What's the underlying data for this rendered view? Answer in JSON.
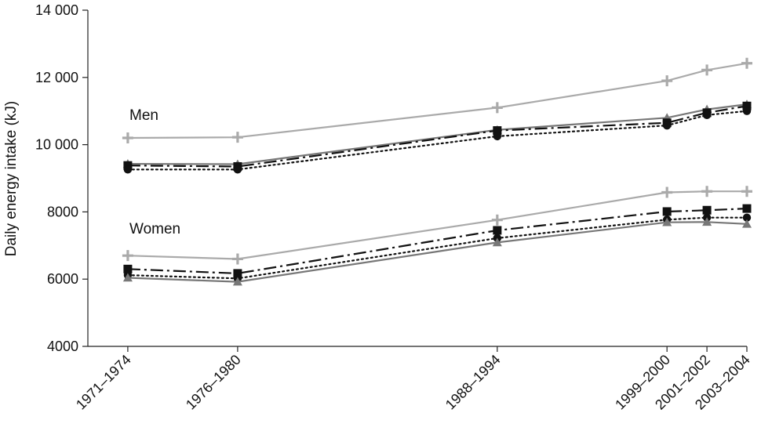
{
  "chart_data": {
    "type": "line",
    "ylabel": "Daily energy intake (kJ)",
    "xlabel": "",
    "ylim": [
      4000,
      14000
    ],
    "yticks": [
      4000,
      6000,
      8000,
      10000,
      12000,
      14000
    ],
    "ytick_labels": [
      "4000",
      "6000",
      "8000",
      "10 000",
      "12 000",
      "14 000"
    ],
    "x": [
      1972.5,
      1978,
      1991,
      1999.5,
      2001.5,
      2003.5
    ],
    "categories": [
      "1971–1974",
      "1976–1980",
      "1988–1994",
      "1999–2000",
      "2001–2002",
      "2003–2004"
    ],
    "grid": false,
    "annotations": [
      "Men",
      "Women"
    ],
    "series": [
      {
        "group": "Men",
        "style": "solid-light-gray-plus",
        "color": "#aaaaaa",
        "marker": "plus",
        "values": [
          10200,
          10220,
          11100,
          11900,
          12220,
          12420
        ]
      },
      {
        "group": "Men",
        "style": "solid-gray-triangle",
        "color": "#777777",
        "marker": "triangle",
        "values": [
          9430,
          9420,
          10440,
          10800,
          11050,
          11200
        ]
      },
      {
        "group": "Men",
        "style": "dashdot-black-square",
        "color": "#111111",
        "marker": "square",
        "values": [
          9380,
          9350,
          10420,
          10650,
          10950,
          11150
        ]
      },
      {
        "group": "Men",
        "style": "dotted-black-circle",
        "color": "#111111",
        "marker": "circle",
        "values": [
          9260,
          9260,
          10250,
          10570,
          10880,
          11000
        ]
      },
      {
        "group": "Women",
        "style": "solid-light-gray-plus",
        "color": "#aaaaaa",
        "marker": "plus",
        "values": [
          6700,
          6600,
          7760,
          8580,
          8610,
          8610
        ]
      },
      {
        "group": "Women",
        "style": "dashdot-black-square",
        "color": "#111111",
        "marker": "square",
        "values": [
          6300,
          6170,
          7450,
          8010,
          8050,
          8100
        ]
      },
      {
        "group": "Women",
        "style": "dotted-black-circle",
        "color": "#111111",
        "marker": "circle",
        "values": [
          6120,
          6020,
          7220,
          7770,
          7830,
          7830
        ]
      },
      {
        "group": "Women",
        "style": "solid-gray-triangle",
        "color": "#777777",
        "marker": "triangle",
        "values": [
          6040,
          5920,
          7090,
          7690,
          7700,
          7640
        ]
      }
    ]
  }
}
